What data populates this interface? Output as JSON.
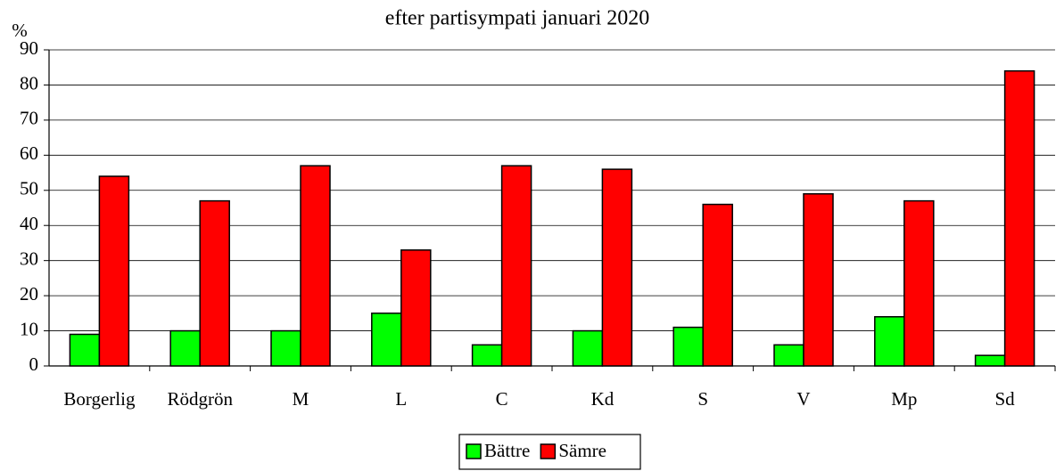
{
  "chart_data": {
    "type": "bar",
    "title": "efter partisympati januari 2020",
    "y_label": "%",
    "categories": [
      "Borgerlig",
      "Rödgrön",
      "M",
      "L",
      "C",
      "Kd",
      "S",
      "V",
      "Mp",
      "Sd"
    ],
    "series": [
      {
        "name": "Bättre",
        "color": "#00ff00",
        "values": [
          9,
          10,
          10,
          15,
          6,
          10,
          11,
          6,
          14,
          3
        ]
      },
      {
        "name": "Sämre",
        "color": "#ff0000",
        "values": [
          54,
          47,
          57,
          33,
          57,
          56,
          46,
          49,
          47,
          84
        ]
      }
    ],
    "ylim": [
      0,
      90
    ],
    "yticks": [
      0,
      10,
      20,
      30,
      40,
      50,
      60,
      70,
      80,
      90
    ],
    "grid": true,
    "legend": "bottom"
  }
}
